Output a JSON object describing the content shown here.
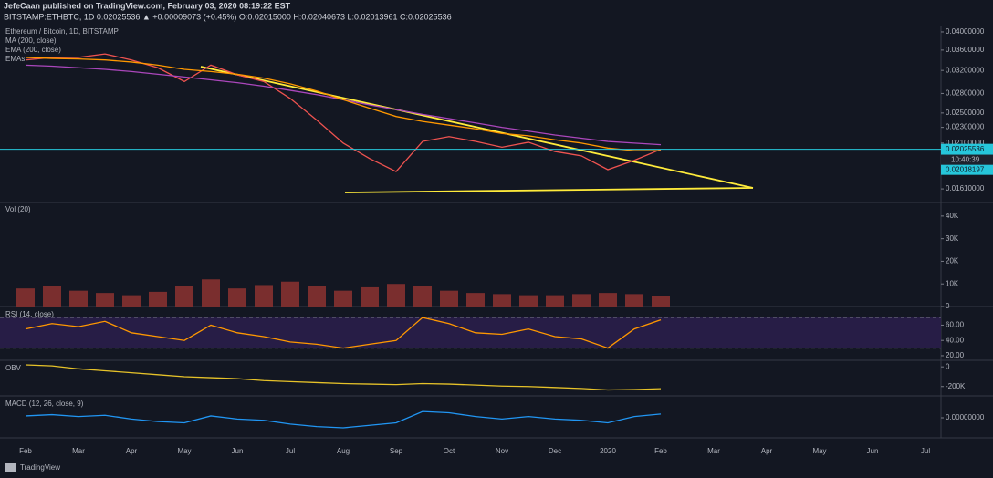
{
  "header": {
    "author_line": "JefeCaan published on TradingView.com, February 03, 2020 08:19:22 EST",
    "symbol_line": "BITSTAMP:ETHBTC, 1D  0.02025536 ▲ +0.00009073 (+0.45%) O:0.02015000 H:0.02040673 L:0.02013961 C:0.02025536",
    "footer": "TradingView"
  },
  "chart_data": [
    {
      "type": "line",
      "log_scale": true,
      "categories": [
        "Feb",
        null,
        "Mar",
        null,
        "Apr",
        null,
        "May",
        null,
        "Jun",
        null,
        "Jul",
        null,
        "Aug",
        null,
        "Sep",
        null,
        "Oct",
        null,
        "Nov",
        null,
        "Dec",
        null,
        "2020",
        null,
        "Feb",
        null,
        "Mar",
        null,
        "Apr",
        null,
        "May",
        null,
        "Jun",
        null,
        "Jul"
      ],
      "series": [
        {
          "name": "Ethereum / Bitcoin, 1D, BITSTAMP",
          "color": "#ef5350",
          "values": [
            0.034,
            0.0345,
            0.0345,
            0.0352,
            0.034,
            0.0325,
            0.03,
            0.033,
            0.0312,
            0.03,
            0.0272,
            0.024,
            0.021,
            0.0192,
            0.0178,
            0.0212,
            0.0218,
            0.0212,
            0.0205,
            0.0211,
            0.02,
            0.0195,
            0.018,
            0.019,
            0.02025536,
            null,
            null,
            null,
            null,
            null,
            null,
            null,
            null,
            null,
            null
          ]
        },
        {
          "name": "MA (200, close)",
          "color": "#ab47bc",
          "values": [
            0.033,
            0.0328,
            0.0325,
            0.0322,
            0.0318,
            0.0313,
            0.0308,
            0.0303,
            0.0298,
            0.0292,
            0.0285,
            0.0278,
            0.027,
            0.0262,
            0.0255,
            0.0248,
            0.0242,
            0.0236,
            0.023,
            0.0225,
            0.022,
            0.0216,
            0.0212,
            0.021,
            0.0208,
            null,
            null,
            null,
            null,
            null,
            null,
            null,
            null,
            null,
            null
          ]
        },
        {
          "name": "EMA (200, close)",
          "color": "#ff9800",
          "values": [
            0.0345,
            0.0343,
            0.0342,
            0.034,
            0.0336,
            0.033,
            0.0322,
            0.0318,
            0.0313,
            0.0306,
            0.0296,
            0.0284,
            0.027,
            0.0257,
            0.0245,
            0.0238,
            0.0233,
            0.0228,
            0.0222,
            0.0219,
            0.0214,
            0.021,
            0.0204,
            0.0201,
            0.0201,
            null,
            null,
            null,
            null,
            null,
            null,
            null,
            null,
            null,
            null
          ]
        }
      ],
      "indicator_group": "EMAs",
      "last_price": 0.02025536,
      "last_time": "10:40:39",
      "ma_price": 0.02018197,
      "ylim": [
        0.01488,
        0.0415
      ],
      "yticks": [
        {
          "value": 0.04,
          "label": "0.04000000"
        },
        {
          "value": 0.036,
          "label": "0.03600000"
        },
        {
          "value": 0.032,
          "label": "0.03200000"
        },
        {
          "value": 0.028,
          "label": "0.02800000"
        },
        {
          "value": 0.025,
          "label": "0.02500000"
        },
        {
          "value": 0.023,
          "label": "0.02300000"
        },
        {
          "value": 0.021,
          "label": "0.02100000"
        },
        {
          "value": 0.0161,
          "label": "0.01610000"
        }
      ]
    },
    {
      "type": "bar",
      "title": "Vol (20)",
      "color": "#7a2e2e",
      "values": [
        8000,
        9000,
        7000,
        6000,
        5000,
        6500,
        9000,
        12000,
        8000,
        9500,
        11000,
        9000,
        7000,
        8500,
        10000,
        9000,
        7000,
        6000,
        5500,
        5000,
        5000,
        5500,
        6000,
        5500,
        4500,
        null,
        null,
        null,
        null,
        null,
        null,
        null,
        null,
        null,
        null
      ],
      "ylim": [
        0,
        46000
      ],
      "yticks": [
        0,
        {
          "value": 10000,
          "label": "10K"
        },
        {
          "value": 20000,
          "label": "20K"
        },
        {
          "value": 30000,
          "label": "30K"
        },
        {
          "value": 40000,
          "label": "40K"
        }
      ]
    },
    {
      "type": "line",
      "title": "RSI (14, close)",
      "color": "#ff9800",
      "bands": [
        70,
        30
      ],
      "values": [
        55,
        62,
        58,
        65,
        50,
        45,
        40,
        60,
        50,
        45,
        38,
        35,
        30,
        35,
        40,
        70,
        62,
        50,
        48,
        55,
        45,
        42,
        30,
        55,
        67,
        null,
        null,
        null,
        null,
        null,
        null,
        null,
        null,
        null,
        null
      ],
      "ylim": [
        14,
        82
      ],
      "yticks": [
        {
          "value": 20,
          "label": "20.00"
        },
        {
          "value": 40,
          "label": "40.00"
        },
        {
          "value": 60,
          "label": "60.00"
        }
      ]
    },
    {
      "type": "line",
      "title": "OBV",
      "color": "#e6c229",
      "values": [
        20000,
        10000,
        -20000,
        -40000,
        -60000,
        -80000,
        -100000,
        -110000,
        -120000,
        -140000,
        -150000,
        -160000,
        -170000,
        -175000,
        -180000,
        -170000,
        -175000,
        -185000,
        -195000,
        -200000,
        -210000,
        -220000,
        -235000,
        -230000,
        -222000,
        null,
        null,
        null,
        null,
        null,
        null,
        null,
        null,
        null,
        null
      ],
      "ylim": [
        -295000,
        48000
      ],
      "yticks": [
        0,
        {
          "value": -200000,
          "label": "-200K"
        }
      ]
    },
    {
      "type": "line",
      "title": "MACD (12, 26, close, 9)",
      "color": "#2196f3",
      "values": [
        0.0003,
        0.0005,
        0.0002,
        0.0004,
        -0.0002,
        -0.0006,
        -0.0008,
        0.0003,
        -0.0002,
        -0.0004,
        -0.001,
        -0.0014,
        -0.0016,
        -0.0012,
        -0.0008,
        0.001,
        0.0008,
        0.0002,
        -0.0002,
        0.0002,
        -0.0002,
        -0.0004,
        -0.0008,
        0.0002,
        0.0006,
        null,
        null,
        null,
        null,
        null,
        null,
        null,
        null,
        null,
        null
      ],
      "ylim": [
        -0.0032,
        0.0032
      ],
      "yticks": [
        {
          "value": 0,
          "label": "0.00000000"
        }
      ]
    }
  ]
}
